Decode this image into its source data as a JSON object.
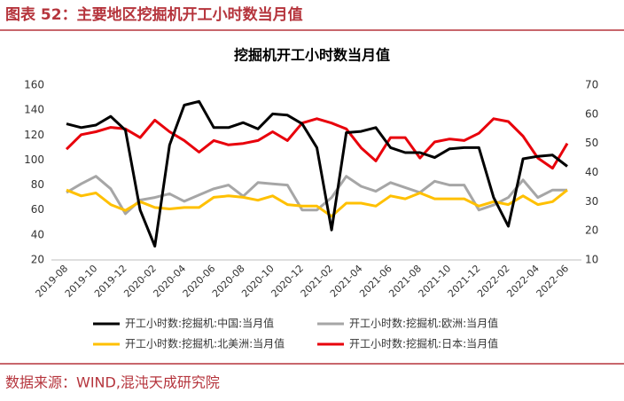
{
  "header": {
    "title": "图表 52：主要地区挖掘机开工小时数当月值"
  },
  "chart_data": {
    "type": "line",
    "title": "挖掘机开工小时数当月值",
    "categories": [
      "2019-08",
      null,
      "2019-10",
      null,
      "2019-12",
      null,
      "2020-02",
      null,
      "2020-04",
      null,
      "2020-06",
      null,
      "2020-08",
      null,
      "2020-10",
      null,
      "2020-12",
      null,
      "2021-02",
      null,
      "2021-04",
      null,
      "2021-06",
      null,
      "2021-08",
      null,
      "2021-10",
      null,
      "2021-12",
      null,
      "2022-02",
      null,
      "2022-04",
      null,
      "2022-06"
    ],
    "ylim": [
      20,
      160
    ],
    "yticks": [
      20,
      40,
      60,
      80,
      100,
      120,
      140,
      160
    ],
    "y2lim": [
      10,
      70
    ],
    "y2ticks": [
      10,
      20,
      30,
      40,
      50,
      60,
      70
    ],
    "legend": "bottom",
    "series": [
      {
        "name": "开工小时数:挖掘机:中国:当月值",
        "color": "#000000",
        "values": [
          129,
          126,
          128,
          135,
          124,
          60,
          31,
          112,
          144,
          147,
          126,
          126,
          130,
          125,
          137,
          136,
          129,
          110,
          44,
          122,
          123,
          126,
          110,
          106,
          106,
          102,
          109,
          110,
          110,
          70,
          47,
          101,
          103,
          104,
          95
        ]
      },
      {
        "name": "开工小时数:挖掘机:欧洲:当月值",
        "color": "#a6a6a6",
        "values": [
          74,
          81,
          87,
          77,
          57,
          68,
          70,
          73,
          67,
          72,
          77,
          80,
          71,
          82,
          81,
          80,
          60,
          60,
          70,
          87,
          79,
          75,
          82,
          78,
          74,
          83,
          80,
          80,
          60,
          64,
          70,
          84,
          70,
          76,
          76
        ]
      },
      {
        "name": "开工小时数:挖掘机:北美洲:当月值",
        "color": "#ffc000",
        "axis": "y2",
        "values": [
          34,
          32,
          33,
          29,
          27,
          30,
          28,
          27.5,
          28,
          28,
          31.5,
          32,
          31.5,
          30.5,
          32,
          29,
          28.5,
          28.5,
          25,
          29.5,
          29.5,
          28.5,
          32,
          31,
          33,
          31,
          31,
          31,
          28.5,
          30,
          29,
          32,
          29,
          30,
          34
        ]
      },
      {
        "name": "开工小时数:挖掘机:日本:当月值",
        "color": "#e8000b",
        "axis": "y2",
        "values": [
          48,
          53,
          54,
          55.5,
          55,
          52,
          58,
          54,
          51,
          47,
          51,
          49.5,
          50,
          51,
          54,
          51,
          57,
          58.5,
          57,
          55,
          48.5,
          44,
          52,
          52,
          45,
          50.5,
          51.5,
          51,
          53.5,
          58.5,
          57.5,
          52.5,
          45,
          41.5,
          50
        ]
      }
    ]
  },
  "footer": {
    "source": "数据来源：WIND,混沌天成研究院"
  }
}
